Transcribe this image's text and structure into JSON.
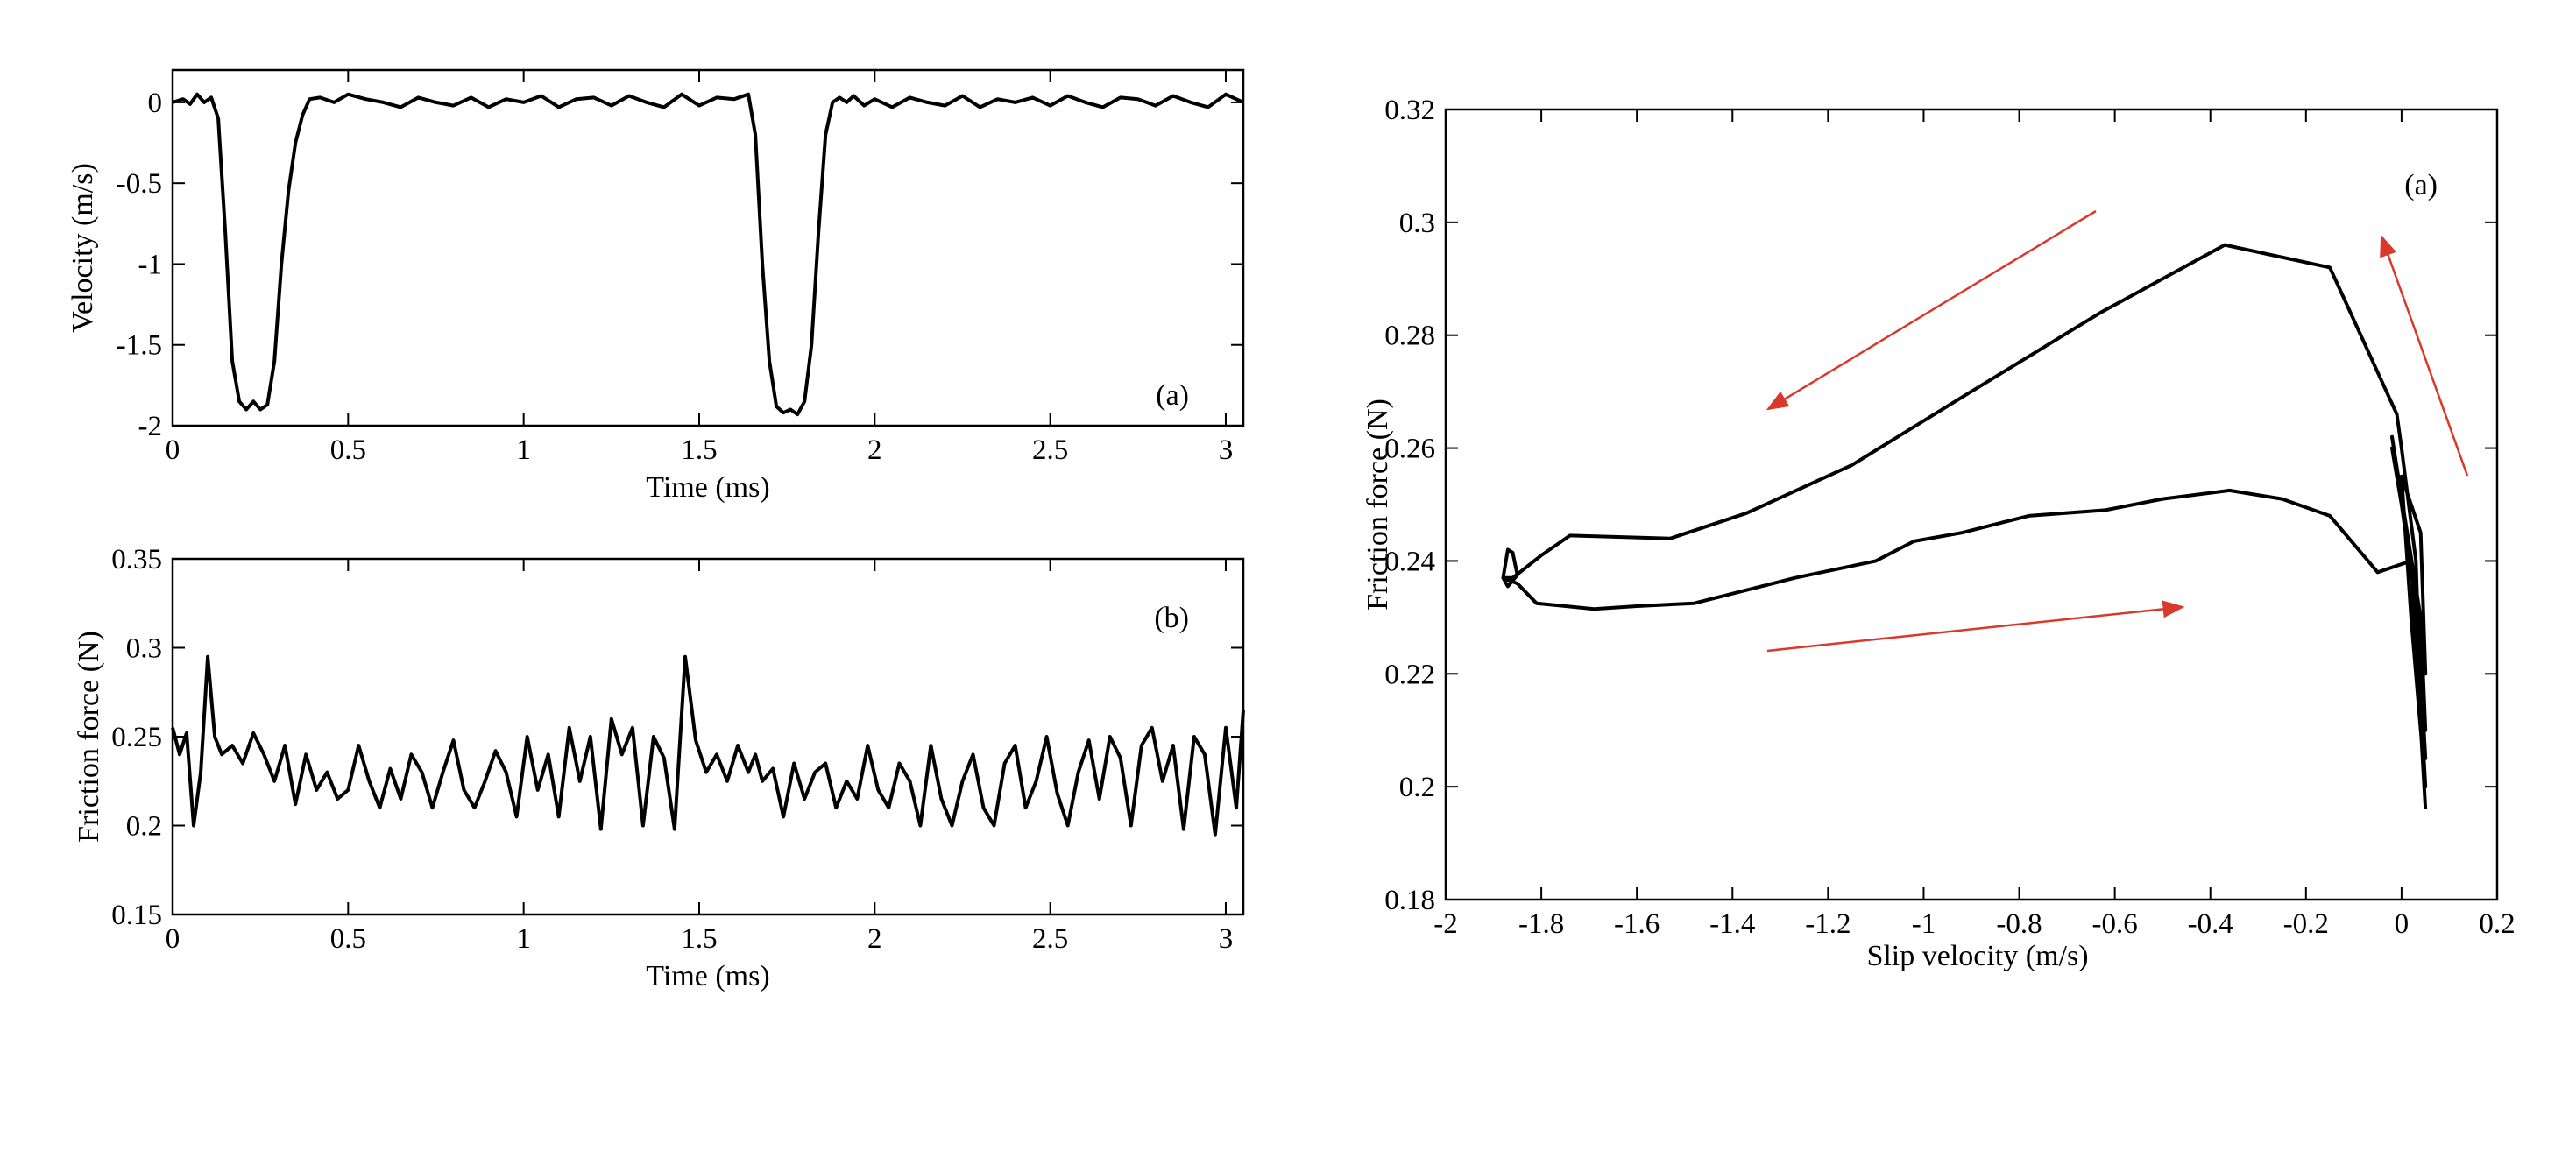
{
  "chart_data": [
    {
      "type": "line",
      "panel_label": "(a)",
      "xlabel": "Time (ms)",
      "ylabel": "Velocity (m/s)",
      "xlim": [
        0,
        3.05
      ],
      "ylim": [
        -2,
        0.2
      ],
      "xticks": [
        0,
        0.5,
        1,
        1.5,
        2,
        2.5,
        3
      ],
      "xtick_labels": [
        "0",
        "0.5",
        "1",
        "1.5",
        "2",
        "2.5",
        "3"
      ],
      "yticks": [
        -2,
        -1.5,
        -1,
        -0.5,
        0
      ],
      "ytick_labels": [
        "-2",
        "-1.5",
        "-1",
        "-0.5",
        "0"
      ],
      "grid": false,
      "line_color": "#000000",
      "series": [
        {
          "x": [
            0,
            0.03,
            0.05,
            0.07,
            0.09,
            0.11,
            0.13,
            0.15,
            0.17,
            0.19,
            0.21,
            0.23,
            0.25,
            0.27,
            0.29,
            0.31,
            0.33,
            0.35,
            0.37,
            0.39,
            0.42,
            0.46,
            0.5,
            0.55,
            0.6,
            0.65,
            0.7,
            0.75,
            0.8,
            0.85,
            0.9,
            0.95,
            1.0,
            1.05,
            1.1,
            1.15,
            1.2,
            1.25,
            1.3,
            1.35,
            1.4,
            1.45,
            1.5,
            1.55,
            1.6,
            1.64,
            1.66,
            1.68,
            1.7,
            1.72,
            1.74,
            1.76,
            1.78,
            1.8,
            1.82,
            1.84,
            1.86,
            1.88,
            1.9,
            1.92,
            1.94,
            1.97,
            2.0,
            2.05,
            2.1,
            2.15,
            2.2,
            2.25,
            2.3,
            2.35,
            2.4,
            2.45,
            2.5,
            2.55,
            2.6,
            2.65,
            2.7,
            2.75,
            2.8,
            2.85,
            2.9,
            2.95,
            3.0,
            3.05
          ],
          "y": [
            0,
            0.02,
            -0.01,
            0.05,
            0.0,
            0.03,
            -0.1,
            -0.8,
            -1.6,
            -1.85,
            -1.9,
            -1.85,
            -1.9,
            -1.87,
            -1.6,
            -1.0,
            -0.55,
            -0.25,
            -0.08,
            0.02,
            0.03,
            0.0,
            0.05,
            0.02,
            0.0,
            -0.03,
            0.03,
            0.0,
            -0.02,
            0.03,
            -0.03,
            0.02,
            0.0,
            0.04,
            -0.03,
            0.02,
            0.03,
            -0.02,
            0.04,
            0.0,
            -0.03,
            0.05,
            -0.02,
            0.03,
            0.02,
            0.05,
            -0.2,
            -1.0,
            -1.6,
            -1.88,
            -1.92,
            -1.9,
            -1.93,
            -1.85,
            -1.5,
            -0.8,
            -0.2,
            0.0,
            0.03,
            0.0,
            0.04,
            -0.02,
            0.02,
            -0.03,
            0.03,
            0.0,
            -0.02,
            0.04,
            -0.03,
            0.02,
            0.0,
            0.03,
            -0.02,
            0.04,
            0.0,
            -0.03,
            0.03,
            0.02,
            -0.02,
            0.04,
            0.0,
            -0.03,
            0.05,
            0.0
          ]
        }
      ]
    },
    {
      "type": "line",
      "panel_label": "(b)",
      "xlabel": "Time (ms)",
      "ylabel": "Friction force (N)",
      "xlim": [
        0,
        3.05
      ],
      "ylim": [
        0.15,
        0.35
      ],
      "xticks": [
        0,
        0.5,
        1,
        1.5,
        2,
        2.5,
        3
      ],
      "xtick_labels": [
        "0",
        "0.5",
        "1",
        "1.5",
        "2",
        "2.5",
        "3"
      ],
      "yticks": [
        0.15,
        0.2,
        0.25,
        0.3,
        0.35
      ],
      "ytick_labels": [
        "0.15",
        "0.2",
        "0.25",
        "0.3",
        "0.35"
      ],
      "grid": false,
      "line_color": "#000000",
      "series": [
        {
          "x": [
            0,
            0.02,
            0.04,
            0.06,
            0.08,
            0.1,
            0.12,
            0.14,
            0.17,
            0.2,
            0.23,
            0.26,
            0.29,
            0.32,
            0.35,
            0.38,
            0.41,
            0.44,
            0.47,
            0.5,
            0.53,
            0.56,
            0.59,
            0.62,
            0.65,
            0.68,
            0.71,
            0.74,
            0.77,
            0.8,
            0.83,
            0.86,
            0.89,
            0.92,
            0.95,
            0.98,
            1.01,
            1.04,
            1.07,
            1.1,
            1.13,
            1.16,
            1.19,
            1.22,
            1.25,
            1.28,
            1.31,
            1.34,
            1.37,
            1.4,
            1.43,
            1.46,
            1.49,
            1.52,
            1.55,
            1.58,
            1.61,
            1.64,
            1.66,
            1.68,
            1.71,
            1.74,
            1.77,
            1.8,
            1.83,
            1.86,
            1.89,
            1.92,
            1.95,
            1.98,
            2.01,
            2.04,
            2.07,
            2.1,
            2.13,
            2.16,
            2.19,
            2.22,
            2.25,
            2.28,
            2.31,
            2.34,
            2.37,
            2.4,
            2.43,
            2.46,
            2.49,
            2.52,
            2.55,
            2.58,
            2.61,
            2.64,
            2.67,
            2.7,
            2.73,
            2.76,
            2.79,
            2.82,
            2.85,
            2.88,
            2.91,
            2.94,
            2.97,
            3.0,
            3.03,
            3.05
          ],
          "y": [
            0.255,
            0.24,
            0.252,
            0.2,
            0.23,
            0.295,
            0.25,
            0.24,
            0.245,
            0.235,
            0.252,
            0.24,
            0.225,
            0.245,
            0.212,
            0.24,
            0.22,
            0.23,
            0.215,
            0.22,
            0.245,
            0.225,
            0.21,
            0.232,
            0.215,
            0.24,
            0.23,
            0.21,
            0.23,
            0.248,
            0.22,
            0.21,
            0.225,
            0.242,
            0.23,
            0.205,
            0.25,
            0.22,
            0.24,
            0.205,
            0.255,
            0.225,
            0.25,
            0.198,
            0.26,
            0.24,
            0.255,
            0.2,
            0.25,
            0.238,
            0.198,
            0.295,
            0.248,
            0.23,
            0.24,
            0.225,
            0.245,
            0.23,
            0.24,
            0.225,
            0.232,
            0.205,
            0.235,
            0.215,
            0.23,
            0.235,
            0.21,
            0.225,
            0.215,
            0.245,
            0.22,
            0.21,
            0.235,
            0.225,
            0.2,
            0.245,
            0.215,
            0.2,
            0.225,
            0.24,
            0.21,
            0.2,
            0.235,
            0.245,
            0.21,
            0.225,
            0.25,
            0.218,
            0.2,
            0.23,
            0.248,
            0.215,
            0.25,
            0.238,
            0.2,
            0.245,
            0.255,
            0.225,
            0.245,
            0.198,
            0.25,
            0.24,
            0.195,
            0.255,
            0.21,
            0.265
          ]
        }
      ]
    },
    {
      "type": "line",
      "panel_label": "(a)",
      "xlabel": "Slip velocity (m/s)",
      "ylabel": "Friction force (N)",
      "xlim": [
        -2,
        0.2
      ],
      "ylim": [
        0.18,
        0.32
      ],
      "xticks": [
        -2,
        -1.8,
        -1.6,
        -1.4,
        -1.2,
        -1,
        -0.8,
        -0.6,
        -0.4,
        -0.2,
        0,
        0.2
      ],
      "xtick_labels": [
        "-2",
        "-1.8",
        "-1.6",
        "-1.4",
        "-1.2",
        "-1",
        "-0.8",
        "-0.6",
        "-0.4",
        "-0.2",
        "0",
        "0.2"
      ],
      "yticks": [
        0.18,
        0.2,
        0.22,
        0.24,
        0.26,
        0.28,
        0.3,
        0.32
      ],
      "ytick_labels": [
        "0.18",
        "0.2",
        "0.22",
        "0.24",
        "0.26",
        "0.28",
        "0.3",
        "0.32"
      ],
      "grid": false,
      "line_color": "#000000",
      "arrow_color": "#d9392b",
      "series": [
        {
          "x": [
            0.02,
            -0.05,
            -0.08,
            -0.15,
            -0.25,
            -0.36,
            -0.5,
            -0.62,
            -0.78,
            -0.92,
            -1.02,
            -1.1,
            -1.27,
            -1.48,
            -1.6,
            -1.69,
            -1.81,
            -1.85,
            -1.88,
            -1.87,
            -1.86,
            -1.85,
            -1.87,
            -1.88,
            -1.86,
            -1.8,
            -1.74,
            -1.53,
            -1.37,
            -1.15,
            -0.92,
            -0.63,
            -0.37,
            -0.15,
            -0.01,
            0.0,
            0.03,
            0.04,
            0.05,
            0.02,
            0.0,
            0.04,
            0.05,
            0.0,
            -0.02,
            0.03,
            0.05,
            0.02,
            -0.02,
            0.04,
            0.05,
            0.02,
            0.05
          ],
          "y": [
            0.24,
            0.238,
            0.241,
            0.248,
            0.251,
            0.2525,
            0.251,
            0.249,
            0.248,
            0.245,
            0.2435,
            0.24,
            0.237,
            0.2325,
            0.232,
            0.2315,
            0.2325,
            0.236,
            0.237,
            0.242,
            0.2415,
            0.2375,
            0.2355,
            0.237,
            0.237,
            0.241,
            0.2445,
            0.244,
            0.2485,
            0.257,
            0.269,
            0.284,
            0.296,
            0.292,
            0.266,
            0.26,
            0.24,
            0.215,
            0.2,
            0.23,
            0.255,
            0.245,
            0.22,
            0.25,
            0.26,
            0.235,
            0.205,
            0.24,
            0.262,
            0.23,
            0.21,
            0.24,
            0.196
          ]
        }
      ]
    }
  ]
}
